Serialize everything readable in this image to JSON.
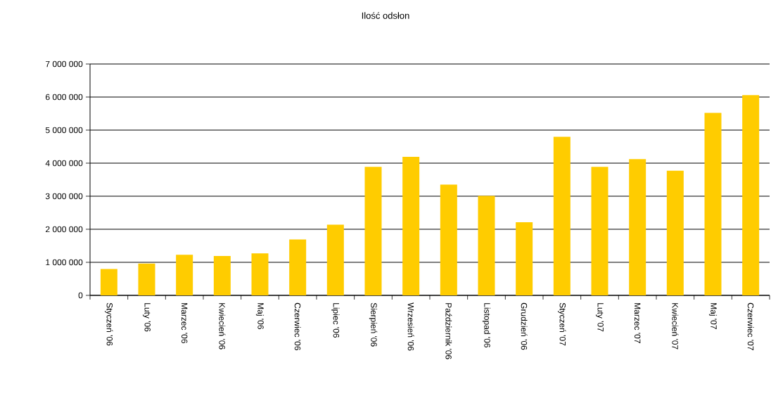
{
  "chart_data": {
    "type": "bar",
    "title": "Ilość odsłon",
    "categories": [
      "Styczeń '06",
      "Luty '06",
      "Marzec '06",
      "Kwiecień '06",
      "Maj '06",
      "Czerwiec '06",
      "Lipiec '06",
      "Sierpień '06",
      "Wrzesień '06",
      "Październik '06",
      "Listopad '06",
      "Grudzień '06",
      "Styczeń '07",
      "Luty '07",
      "Marzec '07",
      "Kwiecień '07",
      "Maj '07",
      "Czerwiec '07"
    ],
    "values": [
      800000,
      960000,
      1230000,
      1190000,
      1270000,
      1690000,
      2140000,
      3890000,
      4190000,
      3350000,
      3010000,
      2210000,
      4800000,
      3890000,
      4120000,
      3770000,
      5520000,
      6060000
    ],
    "color": "#ffcc00",
    "ylim": [
      0,
      7000000
    ],
    "yticks": [
      0,
      {
        "value": 1000000,
        "label": "1 000 000"
      },
      {
        "value": 2000000,
        "label": "2 000 000"
      },
      {
        "value": 3000000,
        "label": "3 000 000"
      },
      {
        "value": 4000000,
        "label": "4 000 000"
      },
      {
        "value": 5000000,
        "label": "5 000 000"
      },
      {
        "value": 6000000,
        "label": "6 000 000"
      },
      {
        "value": 7000000,
        "label": "7 000 000"
      }
    ],
    "grid": "y"
  }
}
